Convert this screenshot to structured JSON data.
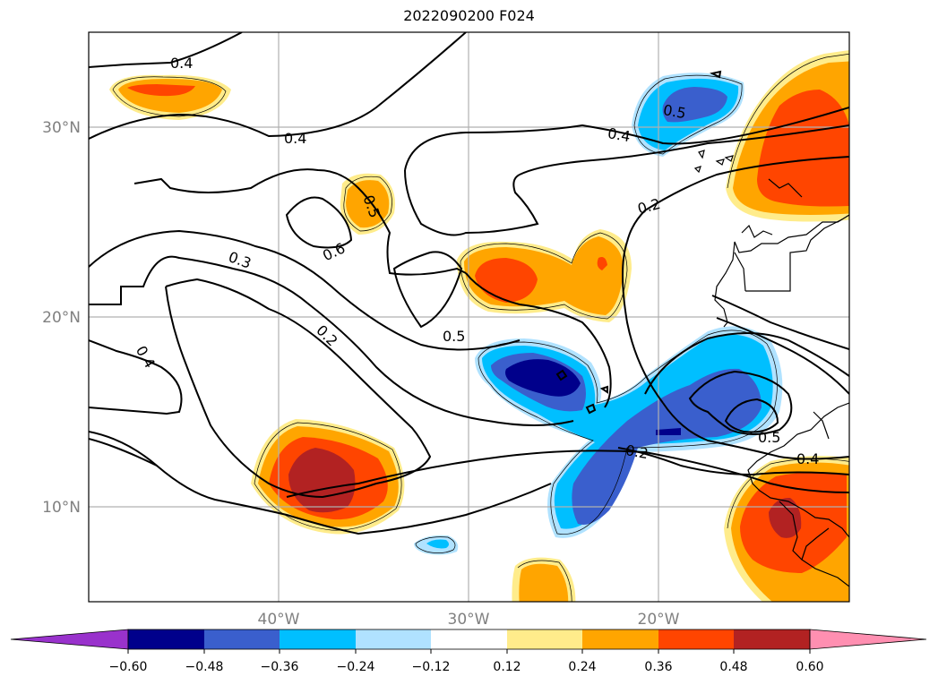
{
  "title": "2022090200 F024",
  "map": {
    "lat_labels": [
      "30°N",
      "20°N",
      "10°N"
    ],
    "lon_labels": [
      "40°W",
      "30°W",
      "20°W"
    ],
    "contour_labels": [
      "0.4",
      "0.4",
      "0.5",
      "0.6",
      "0.3",
      "0.2",
      "0.4",
      "0.5",
      "0.5",
      "0.4",
      "0.2",
      "0.2",
      "0.5",
      "0.4"
    ]
  },
  "colorbar": {
    "ticks": [
      "−0.60",
      "−0.48",
      "−0.36",
      "−0.24",
      "−0.12",
      "0.12",
      "0.24",
      "0.36",
      "0.48",
      "0.60"
    ],
    "colors": [
      "#9932cc",
      "#00008b",
      "#3a5fcd",
      "#00bfff",
      "#b0e2ff",
      "#ffffff",
      "#ffec8b",
      "#ffa500",
      "#ff4500",
      "#b22222",
      "#ff8fb1"
    ]
  },
  "shading_colors": {
    "neg_012": "#b0e2ff",
    "neg_024": "#00bfff",
    "neg_036": "#3a5fcd",
    "neg_048": "#00008b",
    "pos_012": "#ffec8b",
    "pos_024": "#ffa500",
    "pos_036": "#ff4500",
    "pos_048": "#b22222"
  }
}
